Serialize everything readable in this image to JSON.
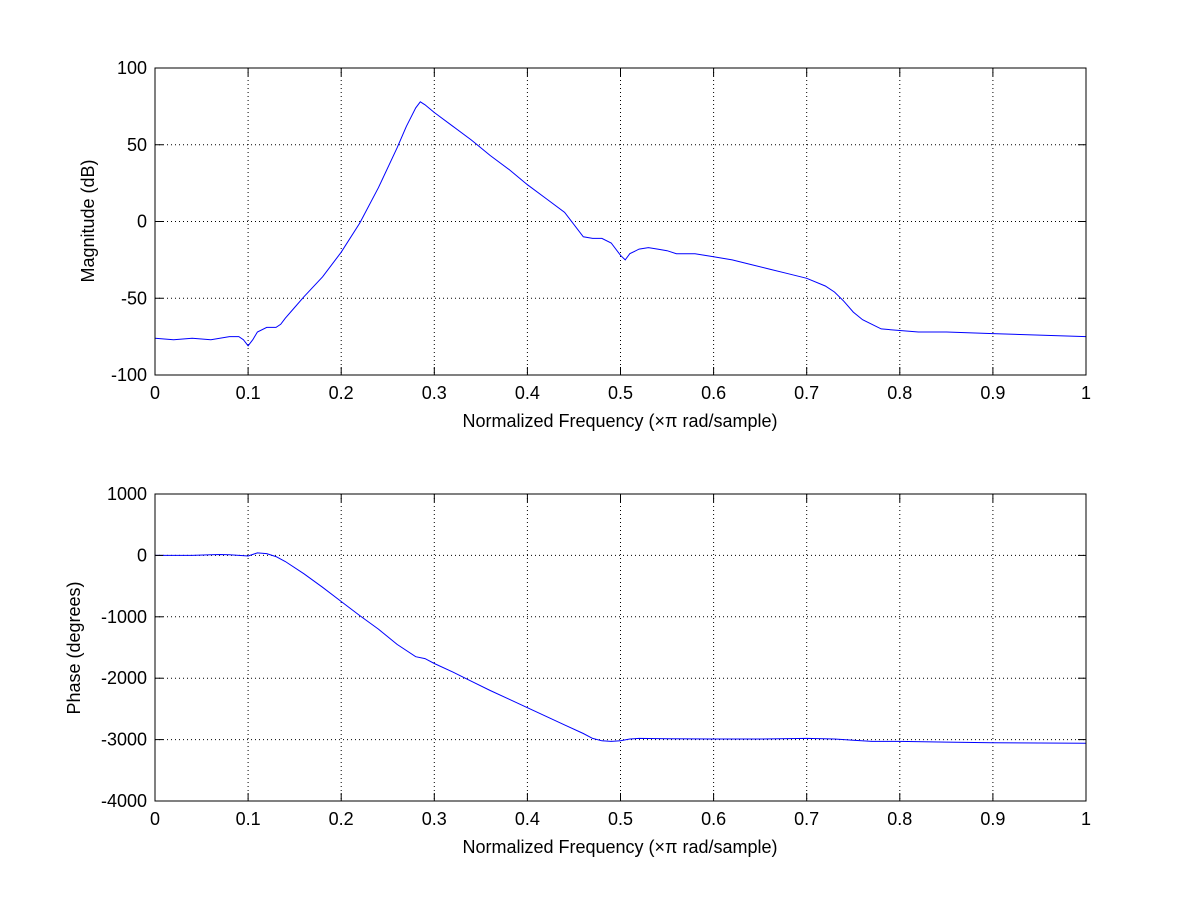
{
  "chart_data": [
    {
      "type": "line",
      "xlabel": "Normalized Frequency  (×π rad/sample)",
      "ylabel": "Magnitude (dB)",
      "xlim": [
        0,
        1
      ],
      "ylim": [
        -100,
        100
      ],
      "xticks": [
        0,
        0.1,
        0.2,
        0.3,
        0.4,
        0.5,
        0.6,
        0.7,
        0.8,
        0.9,
        1
      ],
      "xtick_labels": [
        "0",
        "0.1",
        "0.2",
        "0.3",
        "0.4",
        "0.5",
        "0.6",
        "0.7",
        "0.8",
        "0.9",
        "1"
      ],
      "yticks": [
        -100,
        -50,
        0,
        50,
        100
      ],
      "ytick_labels": [
        "-100",
        "-50",
        "0",
        "50",
        "100"
      ],
      "grid": true,
      "line_color": "#0000ff",
      "series": [
        {
          "x": [
            0,
            0.02,
            0.04,
            0.06,
            0.08,
            0.09,
            0.095,
            0.1,
            0.105,
            0.11,
            0.12,
            0.13,
            0.135,
            0.14,
            0.15,
            0.16,
            0.18,
            0.2,
            0.22,
            0.24,
            0.26,
            0.27,
            0.28,
            0.285,
            0.29,
            0.3,
            0.32,
            0.34,
            0.36,
            0.38,
            0.4,
            0.42,
            0.44,
            0.46,
            0.47,
            0.48,
            0.49,
            0.5,
            0.505,
            0.51,
            0.52,
            0.53,
            0.54,
            0.55,
            0.56,
            0.58,
            0.6,
            0.62,
            0.64,
            0.66,
            0.68,
            0.7,
            0.72,
            0.73,
            0.74,
            0.75,
            0.76,
            0.77,
            0.78,
            0.8,
            0.82,
            0.85,
            0.9,
            0.95,
            1.0
          ],
          "y": [
            -76,
            -77,
            -76,
            -77,
            -75,
            -75,
            -77,
            -81,
            -77,
            -72,
            -69,
            -69,
            -67,
            -63,
            -56,
            -49,
            -36,
            -20,
            -1,
            22,
            48,
            62,
            74,
            78,
            76,
            71,
            62,
            53,
            43,
            34,
            24,
            15,
            6,
            -10,
            -11,
            -11,
            -14,
            -22,
            -25,
            -21,
            -18,
            -17,
            -18,
            -19,
            -21,
            -21,
            -23,
            -25,
            -28,
            -31,
            -34,
            -37,
            -42,
            -46,
            -52,
            -59,
            -64,
            -67,
            -70,
            -71,
            -72,
            -72,
            -73,
            -74,
            -75
          ]
        }
      ]
    },
    {
      "type": "line",
      "xlabel": "Normalized Frequency  (×π rad/sample)",
      "ylabel": "Phase (degrees)",
      "xlim": [
        0,
        1
      ],
      "ylim": [
        -4000,
        1000
      ],
      "xticks": [
        0,
        0.1,
        0.2,
        0.3,
        0.4,
        0.5,
        0.6,
        0.7,
        0.8,
        0.9,
        1
      ],
      "xtick_labels": [
        "0",
        "0.1",
        "0.2",
        "0.3",
        "0.4",
        "0.5",
        "0.6",
        "0.7",
        "0.8",
        "0.9",
        "1"
      ],
      "yticks": [
        -4000,
        -3000,
        -2000,
        -1000,
        0,
        1000
      ],
      "ytick_labels": [
        "-4000",
        "-3000",
        "-2000",
        "-1000",
        "0",
        "1000"
      ],
      "grid": true,
      "line_color": "#0000ff",
      "series": [
        {
          "x": [
            0,
            0.02,
            0.04,
            0.06,
            0.07,
            0.08,
            0.09,
            0.1,
            0.11,
            0.12,
            0.13,
            0.14,
            0.16,
            0.18,
            0.2,
            0.22,
            0.24,
            0.26,
            0.28,
            0.29,
            0.3,
            0.32,
            0.34,
            0.36,
            0.38,
            0.4,
            0.42,
            0.44,
            0.46,
            0.47,
            0.48,
            0.49,
            0.5,
            0.51,
            0.52,
            0.55,
            0.6,
            0.65,
            0.7,
            0.73,
            0.75,
            0.77,
            0.8,
            0.85,
            0.9,
            0.95,
            1.0
          ],
          "y": [
            0,
            0,
            0,
            10,
            15,
            10,
            0,
            -10,
            40,
            30,
            -20,
            -100,
            -300,
            -520,
            -750,
            -980,
            -1200,
            -1450,
            -1650,
            -1680,
            -1760,
            -1900,
            -2050,
            -2200,
            -2340,
            -2480,
            -2620,
            -2760,
            -2900,
            -2980,
            -3020,
            -3030,
            -3020,
            -2990,
            -2980,
            -2985,
            -2990,
            -2990,
            -2980,
            -2990,
            -3010,
            -3030,
            -3030,
            -3040,
            -3050,
            -3055,
            -3060
          ]
        }
      ]
    }
  ]
}
